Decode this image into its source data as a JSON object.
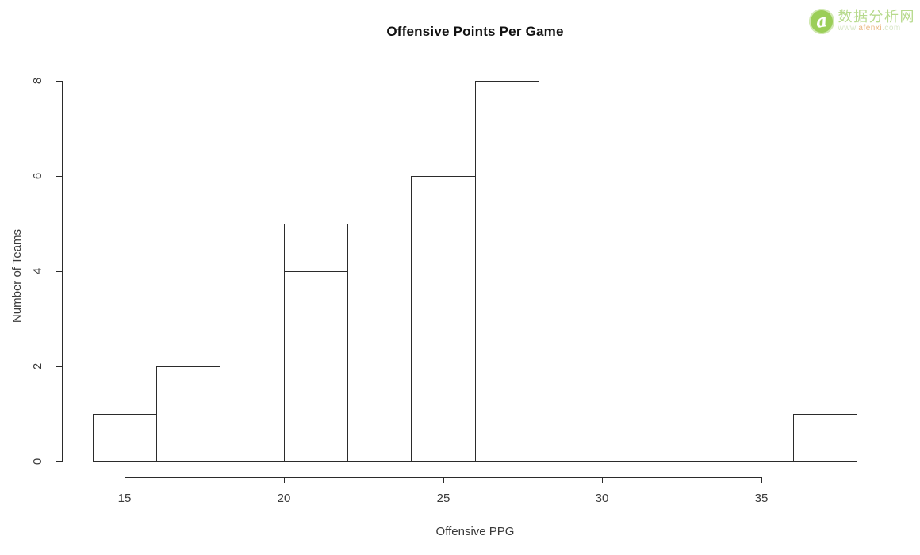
{
  "chart_data": {
    "type": "bar",
    "subtype": "histogram",
    "title": "Offensive Points Per Game",
    "xlabel": "Offensive PPG",
    "ylabel": "Number of Teams",
    "xlim": [
      14,
      38
    ],
    "ylim": [
      0,
      8
    ],
    "x_ticks": [
      15,
      20,
      25,
      30,
      35
    ],
    "y_ticks": [
      0,
      2,
      4,
      6,
      8
    ],
    "bin_width": 2,
    "grid": false,
    "legend": false,
    "bins": [
      {
        "range": [
          14,
          16
        ],
        "count": 1
      },
      {
        "range": [
          16,
          18
        ],
        "count": 2
      },
      {
        "range": [
          18,
          20
        ],
        "count": 5
      },
      {
        "range": [
          20,
          22
        ],
        "count": 4
      },
      {
        "range": [
          22,
          24
        ],
        "count": 5
      },
      {
        "range": [
          24,
          26
        ],
        "count": 6
      },
      {
        "range": [
          26,
          28
        ],
        "count": 8
      },
      {
        "range": [
          28,
          30
        ],
        "count": 0
      },
      {
        "range": [
          30,
          32
        ],
        "count": 0
      },
      {
        "range": [
          32,
          34
        ],
        "count": 0
      },
      {
        "range": [
          34,
          36
        ],
        "count": 0
      },
      {
        "range": [
          36,
          38
        ],
        "count": 1
      }
    ],
    "bar_fill": "#ffffff",
    "bar_stroke": "#2b2b2b"
  },
  "watermark": {
    "badge_letter": "a",
    "brand": "数据分析网",
    "url_prefix": "www.",
    "url_domain": "afenxi",
    "url_suffix": ".com",
    "brand_color": "#b7da8d",
    "badge_color": "#9bce58"
  }
}
